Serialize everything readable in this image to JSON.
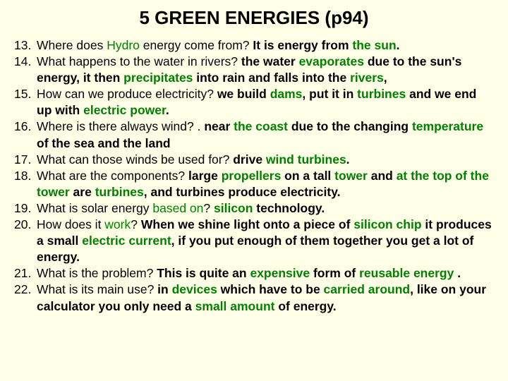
{
  "title": "5 GREEN ENERGIES (p94)",
  "colors": {
    "background": "#ffffe8",
    "text": "#000000",
    "keyword": "#008000"
  },
  "items": [
    {
      "n": 13,
      "q_pre": "Where does ",
      "q_kw1": "Hydro",
      "q_post": " energy come from? ",
      "a_pre": "It is energy from ",
      "a_kw1": "the sun",
      "a_post": "."
    },
    {
      "n": 14,
      "q": "What happens to the water in  rivers? ",
      "a_pre": "the water ",
      "a_kw1": "evaporates",
      "a_mid1": " due to the sun's energy, it then ",
      "a_kw2": "precipitates",
      "a_mid2": " into rain and falls into the ",
      "a_kw3": "rivers",
      "a_post": ","
    },
    {
      "n": 15,
      "q": "How can we produce electricity? ",
      "a_pre": "we build ",
      "a_kw1": "dams",
      "a_mid1": ", put it in ",
      "a_kw2": "turbines",
      "a_mid2": " and we end up with ",
      "a_kw3": "electric power",
      "a_post": "."
    },
    {
      "n": 16,
      "q": "Where is there always wind? . ",
      "a_pre": "near ",
      "a_kw1": "the coast",
      "a_mid1": " due to the changing ",
      "a_kw2": "temperature",
      "a_post": " of the sea and the land"
    },
    {
      "n": 17,
      "q": "What can those winds be used for? ",
      "a_pre": "drive ",
      "a_kw1": "wind turbines",
      "a_post": "."
    },
    {
      "n": 18,
      "q": "What are the components? ",
      "a_pre": "large ",
      "a_kw1": "propellers",
      "a_mid1": " on a tall ",
      "a_kw2": "tower",
      "a_mid2": " and ",
      "a_kw3": "at the top of the tower",
      "a_mid3": " are ",
      "a_kw4": "turbines",
      "a_post": ", and turbines produce electricity."
    },
    {
      "n": 19,
      "q_pre": "What is solar energy ",
      "q_kw1": "based on",
      "q_post": "? ",
      "a_kw1": "silicon",
      "a_post": " technology."
    },
    {
      "n": 20,
      "q_pre": "How does it ",
      "q_kw1": "work",
      "q_post": "? ",
      "a_pre": "When we shine light onto a piece of ",
      "a_kw1": "silicon chip",
      "a_mid1": " it produces a small ",
      "a_kw2": "electric current",
      "a_post": ", if you put enough of them together you get a lot of energy."
    },
    {
      "n": 21,
      "q": "What is the problem? ",
      "a_pre": "This is quite an ",
      "a_kw1": "expensive",
      "a_mid1": " form of ",
      "a_kw2": "reusable energy",
      "a_post": " ."
    },
    {
      "n": 22,
      "q": "What is its main use? ",
      "a_pre": "in ",
      "a_kw1": "devices",
      "a_mid1": " which have to be ",
      "a_kw2": "carried around",
      "a_mid2": ", like on your calculator you only need a ",
      "a_kw3": "small amount",
      "a_post": " of energy."
    }
  ]
}
